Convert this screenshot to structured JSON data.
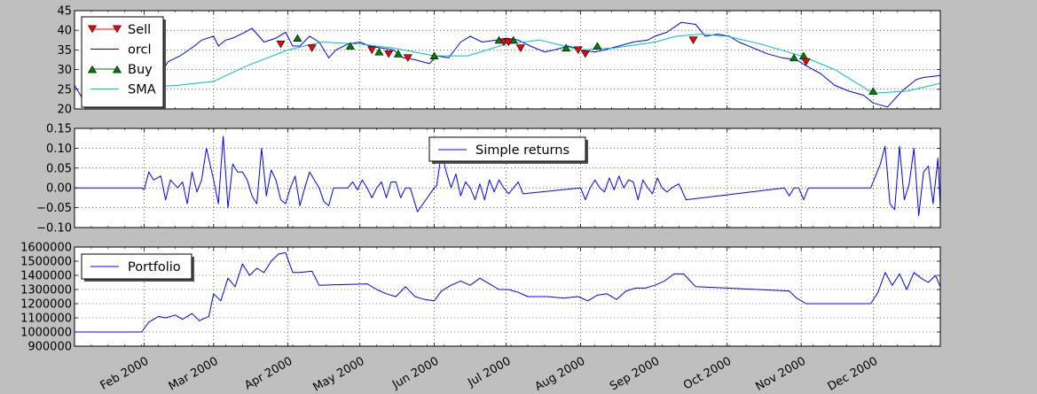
{
  "chart_data": [
    {
      "type": "line",
      "ylim": [
        20,
        45
      ],
      "yticks": [
        20,
        25,
        30,
        35,
        40,
        45
      ],
      "grid": true,
      "legend_position": "upper-left",
      "legend": [
        {
          "label": "Sell",
          "color": "#ff0000",
          "marker": "triangle-down"
        },
        {
          "label": "orcl",
          "color": "#0000ff",
          "marker": "none"
        },
        {
          "label": "Buy",
          "color": "#008000",
          "marker": "triangle-up"
        },
        {
          "label": "SMA",
          "color": "#00bfbf",
          "marker": "none"
        }
      ],
      "series": [
        {
          "name": "orcl",
          "color": "#0000ff",
          "x": [
            "2000-01-03",
            "2000-01-06",
            "2000-01-10",
            "2000-01-14",
            "2000-01-18",
            "2000-01-21",
            "2000-01-25",
            "2000-01-31",
            "2000-02-04",
            "2000-02-08",
            "2000-02-11",
            "2000-02-16",
            "2000-02-22",
            "2000-02-25",
            "2000-03-01",
            "2000-03-03",
            "2000-03-06",
            "2000-03-09",
            "2000-03-14",
            "2000-03-17",
            "2000-03-22",
            "2000-03-27",
            "2000-03-31",
            "2000-04-03",
            "2000-04-06",
            "2000-04-10",
            "2000-04-14",
            "2000-04-18",
            "2000-04-21",
            "2000-04-26",
            "2000-05-01",
            "2000-05-05",
            "2000-05-10",
            "2000-05-15",
            "2000-05-19",
            "2000-05-24",
            "2000-05-30",
            "2000-06-02",
            "2000-06-07",
            "2000-06-12",
            "2000-06-16",
            "2000-06-21",
            "2000-06-27",
            "2000-07-01",
            "2000-07-06",
            "2000-07-11",
            "2000-07-17",
            "2000-07-21",
            "2000-07-27",
            "2000-08-01",
            "2000-08-07",
            "2000-08-11",
            "2000-08-17",
            "2000-08-23",
            "2000-08-29",
            "2000-09-01",
            "2000-09-06",
            "2000-09-12",
            "2000-09-18",
            "2000-09-22",
            "2000-09-27",
            "2000-10-02",
            "2000-10-06",
            "2000-10-12",
            "2000-10-18",
            "2000-10-24",
            "2000-10-30",
            "2000-11-03",
            "2000-11-09",
            "2000-11-15",
            "2000-11-21",
            "2000-11-27",
            "2000-12-01",
            "2000-12-07",
            "2000-12-13",
            "2000-12-19",
            "2000-12-22",
            "2000-12-29"
          ],
          "y": [
            26,
            23,
            22.5,
            23,
            24.5,
            26,
            28,
            27.5,
            27,
            29,
            32,
            33.5,
            36,
            37.5,
            38.5,
            36,
            37.5,
            38,
            39.5,
            40.5,
            37,
            38,
            39.5,
            36,
            36,
            38.5,
            37,
            33,
            35,
            36.5,
            37,
            36,
            35.5,
            35,
            33,
            32.5,
            31.5,
            33.5,
            33,
            37,
            38.5,
            37,
            37.5,
            38,
            37.5,
            36,
            34.5,
            35,
            36,
            35,
            34.5,
            35,
            36,
            37,
            37.5,
            38.5,
            39.5,
            42,
            41.5,
            38.5,
            39,
            38.5,
            37,
            35.5,
            34,
            33,
            32.5,
            31,
            29,
            26,
            24.5,
            23.5,
            21.5,
            20.5,
            24.5,
            27.5,
            28,
            28.5
          ]
        },
        {
          "name": "SMA",
          "color": "#00bfbf",
          "x": [
            "2000-02-01",
            "2000-02-15",
            "2000-03-01",
            "2000-03-15",
            "2000-04-01",
            "2000-04-15",
            "2000-05-01",
            "2000-05-15",
            "2000-06-01",
            "2000-06-15",
            "2000-07-01",
            "2000-07-15",
            "2000-08-01",
            "2000-08-15",
            "2000-09-01",
            "2000-09-10",
            "2000-09-20",
            "2000-10-01",
            "2000-10-15",
            "2000-11-01",
            "2000-11-15",
            "2000-12-01",
            "2000-12-15",
            "2000-12-29"
          ],
          "y": [
            25.5,
            26,
            27,
            31,
            35,
            37,
            36.5,
            35.5,
            33.5,
            33.5,
            36.5,
            37.5,
            35,
            35.5,
            37,
            38.5,
            39,
            38.5,
            36.5,
            33.5,
            30,
            24,
            24.5,
            26.5
          ]
        }
      ],
      "buy_markers": {
        "x": [
          "2000-04-05",
          "2000-04-27",
          "2000-05-09",
          "2000-05-17",
          "2000-06-01",
          "2000-06-28",
          "2000-07-04",
          "2000-07-26",
          "2000-08-08",
          "2000-10-29",
          "2000-11-02",
          "2000-12-01"
        ],
        "y": [
          38,
          36,
          34.5,
          34,
          33.5,
          37.5,
          37.5,
          35.5,
          36,
          33,
          33.5,
          24.5
        ]
      },
      "sell_markers": {
        "x": [
          "2000-03-29",
          "2000-04-11",
          "2000-05-06",
          "2000-05-13",
          "2000-05-21",
          "2000-06-30",
          "2000-07-02",
          "2000-07-07",
          "2000-07-31",
          "2000-08-03",
          "2000-09-17",
          "2000-11-03"
        ],
        "y": [
          36.5,
          35.5,
          35,
          34,
          33,
          37,
          37,
          35.5,
          35,
          34,
          37.5,
          32
        ]
      }
    },
    {
      "type": "line",
      "ylim": [
        -0.1,
        0.15
      ],
      "yticks": [
        "0.15",
        "0.10",
        "0.05",
        "0.00",
        "−0.05",
        "−0.10"
      ],
      "grid": true,
      "legend_position": "upper-center",
      "legend": [
        {
          "label": "Simple returns",
          "color": "#0000ff"
        }
      ],
      "series": [
        {
          "name": "Simple returns",
          "color": "#0000ff",
          "x": [
            "2000-01-03",
            "2000-01-31",
            "2000-02-01",
            "2000-02-03",
            "2000-02-05",
            "2000-02-08",
            "2000-02-10",
            "2000-02-12",
            "2000-02-15",
            "2000-02-17",
            "2000-02-19",
            "2000-02-21",
            "2000-02-23",
            "2000-02-25",
            "2000-02-27",
            "2000-03-01",
            "2000-03-03",
            "2000-03-05",
            "2000-03-07",
            "2000-03-09",
            "2000-03-11",
            "2000-03-13",
            "2000-03-15",
            "2000-03-17",
            "2000-03-19",
            "2000-03-21",
            "2000-03-23",
            "2000-03-25",
            "2000-03-27",
            "2000-03-29",
            "2000-03-31",
            "2000-04-02",
            "2000-04-04",
            "2000-04-06",
            "2000-04-08",
            "2000-04-10",
            "2000-04-12",
            "2000-04-14",
            "2000-04-16",
            "2000-04-18",
            "2000-04-20",
            "2000-04-22",
            "2000-04-24",
            "2000-04-26",
            "2000-04-28",
            "2000-04-30",
            "2000-05-02",
            "2000-05-04",
            "2000-05-06",
            "2000-05-08",
            "2000-05-10",
            "2000-05-12",
            "2000-05-14",
            "2000-05-16",
            "2000-05-18",
            "2000-05-20",
            "2000-05-22",
            "2000-05-25",
            "2000-06-01",
            "2000-06-02",
            "2000-06-04",
            "2000-06-06",
            "2000-06-08",
            "2000-06-10",
            "2000-06-12",
            "2000-06-14",
            "2000-06-16",
            "2000-06-18",
            "2000-06-20",
            "2000-06-22",
            "2000-06-24",
            "2000-06-26",
            "2000-06-28",
            "2000-06-30",
            "2000-07-02",
            "2000-07-04",
            "2000-07-06",
            "2000-07-08",
            "2000-08-01",
            "2000-08-03",
            "2000-08-05",
            "2000-08-07",
            "2000-08-09",
            "2000-08-11",
            "2000-08-13",
            "2000-08-15",
            "2000-08-17",
            "2000-08-19",
            "2000-08-21",
            "2000-08-23",
            "2000-08-25",
            "2000-08-27",
            "2000-08-29",
            "2000-08-31",
            "2000-09-02",
            "2000-09-04",
            "2000-09-06",
            "2000-09-08",
            "2000-09-11",
            "2000-09-14",
            "2000-10-25",
            "2000-10-27",
            "2000-10-29",
            "2000-10-31",
            "2000-11-02",
            "2000-11-04",
            "2000-11-06",
            "2000-11-30",
            "2000-12-02",
            "2000-12-04",
            "2000-12-06",
            "2000-12-08",
            "2000-12-10",
            "2000-12-12",
            "2000-12-14",
            "2000-12-16",
            "2000-12-18",
            "2000-12-20",
            "2000-12-22",
            "2000-12-24",
            "2000-12-26",
            "2000-12-28",
            "2000-12-29"
          ],
          "y": [
            0,
            0,
            -0.005,
            0.04,
            0.02,
            0.03,
            -0.03,
            0.02,
            0,
            0.015,
            -0.04,
            0.04,
            -0.01,
            0.02,
            0.1,
            0.02,
            -0.04,
            0.13,
            -0.05,
            0.06,
            0.04,
            0.04,
            0.02,
            -0.02,
            -0.04,
            0.1,
            -0.02,
            0.045,
            0.02,
            -0.03,
            -0.04,
            0,
            0.03,
            -0.045,
            0,
            0.04,
            0.02,
            0,
            -0.035,
            -0.045,
            0,
            0,
            0,
            0,
            0.015,
            -0.005,
            0.02,
            0,
            -0.025,
            0,
            0.015,
            -0.025,
            0.015,
            0.015,
            -0.025,
            0,
            0,
            -0.06,
            0,
            0.005,
            0.09,
            0.04,
            0,
            0.035,
            -0.02,
            0.015,
            0,
            -0.03,
            0.01,
            -0.03,
            0.02,
            -0.01,
            0.02,
            0,
            -0.015,
            0,
            0.015,
            -0.015,
            0,
            -0.03,
            0,
            0.02,
            0,
            -0.01,
            0.025,
            -0.005,
            0.03,
            0,
            0.02,
            0.015,
            -0.03,
            0.02,
            0,
            -0.015,
            0.025,
            0,
            -0.01,
            0,
            0.01,
            -0.03,
            0,
            -0.02,
            0,
            0,
            -0.03,
            0,
            0,
            0,
            0.03,
            0.06,
            0.105,
            -0.04,
            -0.055,
            0.105,
            -0.03,
            0.01,
            0.1,
            -0.07,
            0.04,
            0.055,
            -0.04,
            0.075,
            -0.05
          ],
          "x_tail": [
            "2000-12-26",
            "2000-12-27",
            "2000-12-28",
            "2000-12-29"
          ],
          "y_tail": [
            0.07,
            0.03,
            -0.02,
            0.01
          ]
        }
      ]
    },
    {
      "type": "line",
      "ylim": [
        900000,
        1600000
      ],
      "yticks": [
        900000,
        1000000,
        1100000,
        1200000,
        1300000,
        1400000,
        1500000,
        1600000
      ],
      "grid": true,
      "legend_position": "upper-left",
      "legend": [
        {
          "label": "Portfolio",
          "color": "#0000ff"
        }
      ],
      "series": [
        {
          "name": "Portfolio",
          "color": "#0000ff",
          "x": [
            "2000-01-03",
            "2000-01-31",
            "2000-02-03",
            "2000-02-07",
            "2000-02-10",
            "2000-02-14",
            "2000-02-17",
            "2000-02-21",
            "2000-02-24",
            "2000-02-28",
            "2000-03-01",
            "2000-03-04",
            "2000-03-07",
            "2000-03-10",
            "2000-03-13",
            "2000-03-16",
            "2000-03-19",
            "2000-03-22",
            "2000-03-25",
            "2000-03-28",
            "2000-03-31",
            "2000-04-03",
            "2000-04-06",
            "2000-04-11",
            "2000-04-14",
            "2000-05-04",
            "2000-05-08",
            "2000-05-12",
            "2000-05-16",
            "2000-05-20",
            "2000-05-24",
            "2000-05-28",
            "2000-06-01",
            "2000-06-04",
            "2000-06-08",
            "2000-06-12",
            "2000-06-16",
            "2000-06-20",
            "2000-06-24",
            "2000-06-28",
            "2000-07-02",
            "2000-07-06",
            "2000-07-10",
            "2000-07-18",
            "2000-07-25",
            "2000-07-31",
            "2000-08-04",
            "2000-08-08",
            "2000-08-12",
            "2000-08-16",
            "2000-08-20",
            "2000-08-24",
            "2000-08-28",
            "2000-09-01",
            "2000-09-05",
            "2000-09-09",
            "2000-09-13",
            "2000-09-18",
            "2000-10-27",
            "2000-10-30",
            "2000-11-03",
            "2000-11-30",
            "2000-12-03",
            "2000-12-06",
            "2000-12-09",
            "2000-12-12",
            "2000-12-15",
            "2000-12-18",
            "2000-12-21",
            "2000-12-24",
            "2000-12-27",
            "2000-12-29"
          ],
          "y": [
            1000000,
            1000000,
            1070000,
            1110000,
            1100000,
            1120000,
            1090000,
            1130000,
            1080000,
            1110000,
            1270000,
            1220000,
            1380000,
            1320000,
            1480000,
            1400000,
            1450000,
            1420000,
            1500000,
            1550000,
            1560000,
            1420000,
            1420000,
            1430000,
            1330000,
            1340000,
            1300000,
            1270000,
            1250000,
            1320000,
            1250000,
            1230000,
            1220000,
            1290000,
            1330000,
            1360000,
            1330000,
            1380000,
            1340000,
            1300000,
            1300000,
            1280000,
            1250000,
            1250000,
            1240000,
            1250000,
            1220000,
            1260000,
            1270000,
            1230000,
            1290000,
            1310000,
            1310000,
            1330000,
            1360000,
            1410000,
            1410000,
            1320000,
            1290000,
            1240000,
            1200000,
            1200000,
            1280000,
            1420000,
            1330000,
            1410000,
            1300000,
            1420000,
            1380000,
            1350000,
            1400000,
            1320000
          ]
        }
      ]
    }
  ],
  "x_axis": {
    "start": "2000-01-03",
    "end": "2000-12-29",
    "tick_labels": [
      {
        "date": "2000-02-01",
        "label": "Feb 2000"
      },
      {
        "date": "2000-03-01",
        "label": "Mar 2000"
      },
      {
        "date": "2000-04-01",
        "label": "Apr 2000"
      },
      {
        "date": "2000-05-01",
        "label": "May 2000"
      },
      {
        "date": "2000-06-01",
        "label": "Jun 2000"
      },
      {
        "date": "2000-07-01",
        "label": "Jul 2000"
      },
      {
        "date": "2000-08-01",
        "label": "Aug 2000"
      },
      {
        "date": "2000-09-01",
        "label": "Sep 2000"
      },
      {
        "date": "2000-10-01",
        "label": "Oct 2000"
      },
      {
        "date": "2000-11-01",
        "label": "Nov 2000"
      },
      {
        "date": "2000-12-01",
        "label": "Dec 2000"
      }
    ]
  }
}
